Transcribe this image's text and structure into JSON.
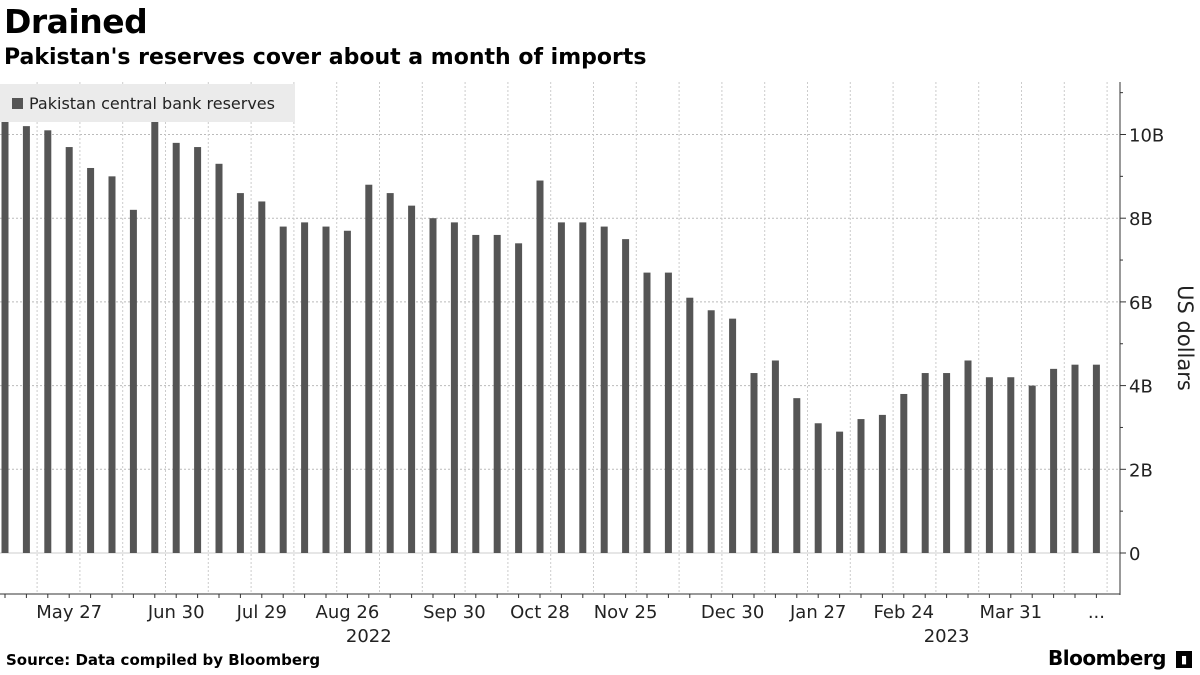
{
  "title": "Drained",
  "subtitle": "Pakistan's reserves cover about a month of imports",
  "legend": {
    "label": "Pakistan central bank reserves"
  },
  "source": "Source: Data compiled by Bloomberg",
  "brand": "Bloomberg",
  "colors": {
    "bar": "#555555",
    "grid": "#bbbbbb",
    "legend_bg": "#ebebeb",
    "axis": "#333333"
  },
  "chart_data": {
    "type": "bar",
    "title": "Drained",
    "subtitle": "Pakistan's reserves cover about a month of imports",
    "ylabel": "US dollars",
    "ylim": [
      0,
      11.2
    ],
    "yticks": [
      0,
      2,
      4,
      6,
      8,
      10
    ],
    "ytick_labels": [
      "0",
      "2B",
      "4B",
      "6B",
      "8B",
      "10B"
    ],
    "y_axis_side": "right",
    "grid": true,
    "legend_position": "top-left",
    "series": [
      {
        "name": "Pakistan central bank reserves",
        "values": [
          10.3,
          10.2,
          10.1,
          9.7,
          9.2,
          9.0,
          8.2,
          10.3,
          9.8,
          9.7,
          9.3,
          8.6,
          8.4,
          7.8,
          7.9,
          7.8,
          7.7,
          8.8,
          8.6,
          8.3,
          8.0,
          7.9,
          7.6,
          7.6,
          7.4,
          8.9,
          7.9,
          7.9,
          7.8,
          7.5,
          6.7,
          6.7,
          6.1,
          5.8,
          5.6,
          4.3,
          4.6,
          3.7,
          3.1,
          2.9,
          3.2,
          3.3,
          3.8,
          4.3,
          4.3,
          4.6,
          4.2,
          4.2,
          4.0,
          4.4,
          4.5,
          4.5
        ]
      }
    ],
    "x_tick_labels": [
      {
        "index": 3,
        "label": "May 27"
      },
      {
        "index": 8,
        "label": "Jun 30"
      },
      {
        "index": 12,
        "label": "Jul 29"
      },
      {
        "index": 16,
        "label": "Aug 26"
      },
      {
        "index": 21,
        "label": "Sep 30"
      },
      {
        "index": 25,
        "label": "Oct 28"
      },
      {
        "index": 29,
        "label": "Nov 25"
      },
      {
        "index": 34,
        "label": "Dec 30"
      },
      {
        "index": 38,
        "label": "Jan 27"
      },
      {
        "index": 42,
        "label": "Feb 24"
      },
      {
        "index": 47,
        "label": "Mar 31"
      },
      {
        "index": 51,
        "label": "..."
      }
    ],
    "year_labels": [
      {
        "index": 17,
        "label": "2022"
      },
      {
        "index": 44,
        "label": "2023"
      }
    ]
  }
}
